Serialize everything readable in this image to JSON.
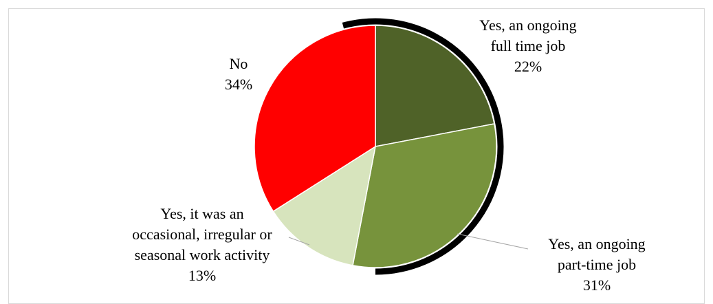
{
  "chart_data": {
    "type": "pie",
    "title": "",
    "start_angle_deg": 0,
    "direction": "clockwise",
    "slices": [
      {
        "label_lines": [
          "Yes, an ongoing",
          "full time job"
        ],
        "value": 22,
        "value_label": "22%",
        "color": "#4f6228"
      },
      {
        "label_lines": [
          "Yes, an ongoing",
          "part-time job"
        ],
        "value": 31,
        "value_label": "31%",
        "color": "#77933c"
      },
      {
        "label_lines": [
          "Yes, it was an",
          "occasional, irregular or",
          "seasonal work activity"
        ],
        "value": 13,
        "value_label": "13%",
        "color": "#d7e4bd"
      },
      {
        "label_lines": [
          "No"
        ],
        "value": 34,
        "value_label": "34%",
        "color": "#ff0000"
      }
    ],
    "legend": "none",
    "slice_border_color": "#ffffff",
    "shadow_color": "#000000"
  }
}
